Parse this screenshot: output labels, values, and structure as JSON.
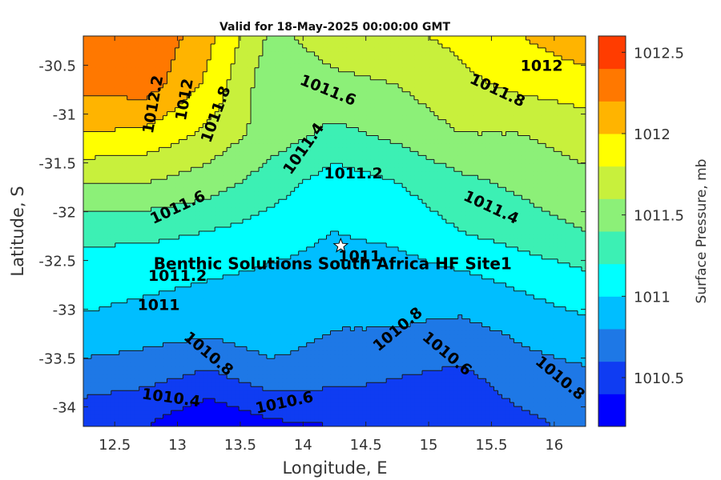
{
  "chart_data": {
    "type": "heatmap",
    "subtype": "filled contour map",
    "title": "Valid for 18-May-2025 00:00:00 GMT",
    "xlabel": "Longitude, E",
    "ylabel": "Latitude, S",
    "colorbar_label": "Surface Pressure, mb",
    "xlim": [
      12.25,
      16.25
    ],
    "ylim": [
      -34.2,
      -30.2
    ],
    "xticks": [
      12.5,
      13,
      13.5,
      14,
      14.5,
      15,
      15.5,
      16
    ],
    "yticks": [
      -30.5,
      -31,
      -31.5,
      -32,
      -32.5,
      -33,
      -33.5,
      -34
    ],
    "xtick_labels": [
      "12.5",
      "13",
      "13.5",
      "14",
      "14.5",
      "15",
      "15.5",
      "16"
    ],
    "ytick_labels": [
      "-30.5",
      "-31",
      "-31.5",
      "-32",
      "-32.5",
      "-33",
      "-33.5",
      "-34"
    ],
    "color_range": [
      1010.2,
      1012.6
    ],
    "level_step": 0.2,
    "colorbar_ticks": [
      1010.5,
      1011,
      1011.5,
      1012,
      1012.5
    ],
    "colorbar_tick_labels": [
      "1010.5",
      "1011",
      "1011.5",
      "1012",
      "1012.5"
    ],
    "level_colors": [
      "#0000ff",
      "#0f3cf2",
      "#1e78e6",
      "#00beff",
      "#00ffff",
      "#3cf0b4",
      "#8cf078",
      "#c8f03c",
      "#ffff00",
      "#ffb400",
      "#ff7800",
      "#ff3c00"
    ],
    "grid_longitudes": [
      12.25,
      12.75,
      13.25,
      13.75,
      14.25,
      14.75,
      15.25,
      15.75,
      16.25
    ],
    "grid_latitudes": [
      -30.2,
      -30.7,
      -31.2,
      -31.7,
      -32.2,
      -32.7,
      -33.2,
      -33.7,
      -34.2
    ],
    "pressure_grid_mb": [
      [
        1012.35,
        1012.4,
        1012.05,
        1011.55,
        1011.7,
        1011.75,
        1011.85,
        1012.0,
        1012.15
      ],
      [
        1012.25,
        1012.3,
        1011.95,
        1011.45,
        1011.55,
        1011.6,
        1011.75,
        1011.85,
        1011.9
      ],
      [
        1012.0,
        1011.95,
        1011.75,
        1011.5,
        1011.35,
        1011.45,
        1011.6,
        1011.6,
        1011.7
      ],
      [
        1011.6,
        1011.6,
        1011.5,
        1011.3,
        1011.1,
        1011.2,
        1011.35,
        1011.45,
        1011.55
      ],
      [
        1011.25,
        1011.25,
        1011.2,
        1011.1,
        1011.0,
        1011.05,
        1011.2,
        1011.3,
        1011.4
      ],
      [
        1011.1,
        1011.05,
        1011.0,
        1010.95,
        1010.9,
        1010.9,
        1010.95,
        1011.05,
        1011.15
      ],
      [
        1010.95,
        1010.9,
        1010.85,
        1010.95,
        1010.8,
        1010.8,
        1010.75,
        1010.85,
        1010.95
      ],
      [
        1010.7,
        1010.65,
        1010.55,
        1010.7,
        1010.65,
        1010.6,
        1010.55,
        1010.7,
        1010.75
      ],
      [
        1010.45,
        1010.4,
        1010.2,
        1010.35,
        1010.4,
        1010.5,
        1010.45,
        1010.55,
        1010.65
      ]
    ],
    "contour_labels": [
      {
        "text": "1012",
        "lon": 15.9,
        "lat": -30.5,
        "angle": 0
      },
      {
        "text": "1012.2",
        "lon": 12.8,
        "lat": -30.9,
        "angle": -80
      },
      {
        "text": "1012",
        "lon": 13.05,
        "lat": -30.85,
        "angle": -80
      },
      {
        "text": "1011.8",
        "lon": 13.3,
        "lat": -31.0,
        "angle": -70
      },
      {
        "text": "1011.8",
        "lon": 15.55,
        "lat": -30.75,
        "angle": 25
      },
      {
        "text": "1011.6",
        "lon": 14.2,
        "lat": -30.75,
        "angle": 22
      },
      {
        "text": "1011.4",
        "lon": 14.0,
        "lat": -31.35,
        "angle": -55
      },
      {
        "text": "1011.2",
        "lon": 14.4,
        "lat": -31.6,
        "angle": 0
      },
      {
        "text": "1011.6",
        "lon": 13.0,
        "lat": -31.95,
        "angle": -25
      },
      {
        "text": "1011.4",
        "lon": 15.5,
        "lat": -31.95,
        "angle": 25
      },
      {
        "text": "1011",
        "lon": 14.45,
        "lat": -32.45,
        "angle": 0
      },
      {
        "text": "1011.2",
        "lon": 13.0,
        "lat": -32.65,
        "angle": 0
      },
      {
        "text": "1011",
        "lon": 12.85,
        "lat": -32.95,
        "angle": 0
      },
      {
        "text": "1010.8",
        "lon": 13.25,
        "lat": -33.45,
        "angle": 40
      },
      {
        "text": "1010.8",
        "lon": 14.75,
        "lat": -33.2,
        "angle": -40
      },
      {
        "text": "1010.6",
        "lon": 15.15,
        "lat": -33.45,
        "angle": 40
      },
      {
        "text": "1010.8",
        "lon": 16.05,
        "lat": -33.7,
        "angle": 40
      },
      {
        "text": "1010.4",
        "lon": 12.95,
        "lat": -33.9,
        "angle": 8
      },
      {
        "text": "1010.6",
        "lon": 13.85,
        "lat": -33.95,
        "angle": -12
      }
    ],
    "site": {
      "name": "Benthic Solutions South Africa HF Site1",
      "lon": 14.3,
      "lat": -32.35
    }
  }
}
